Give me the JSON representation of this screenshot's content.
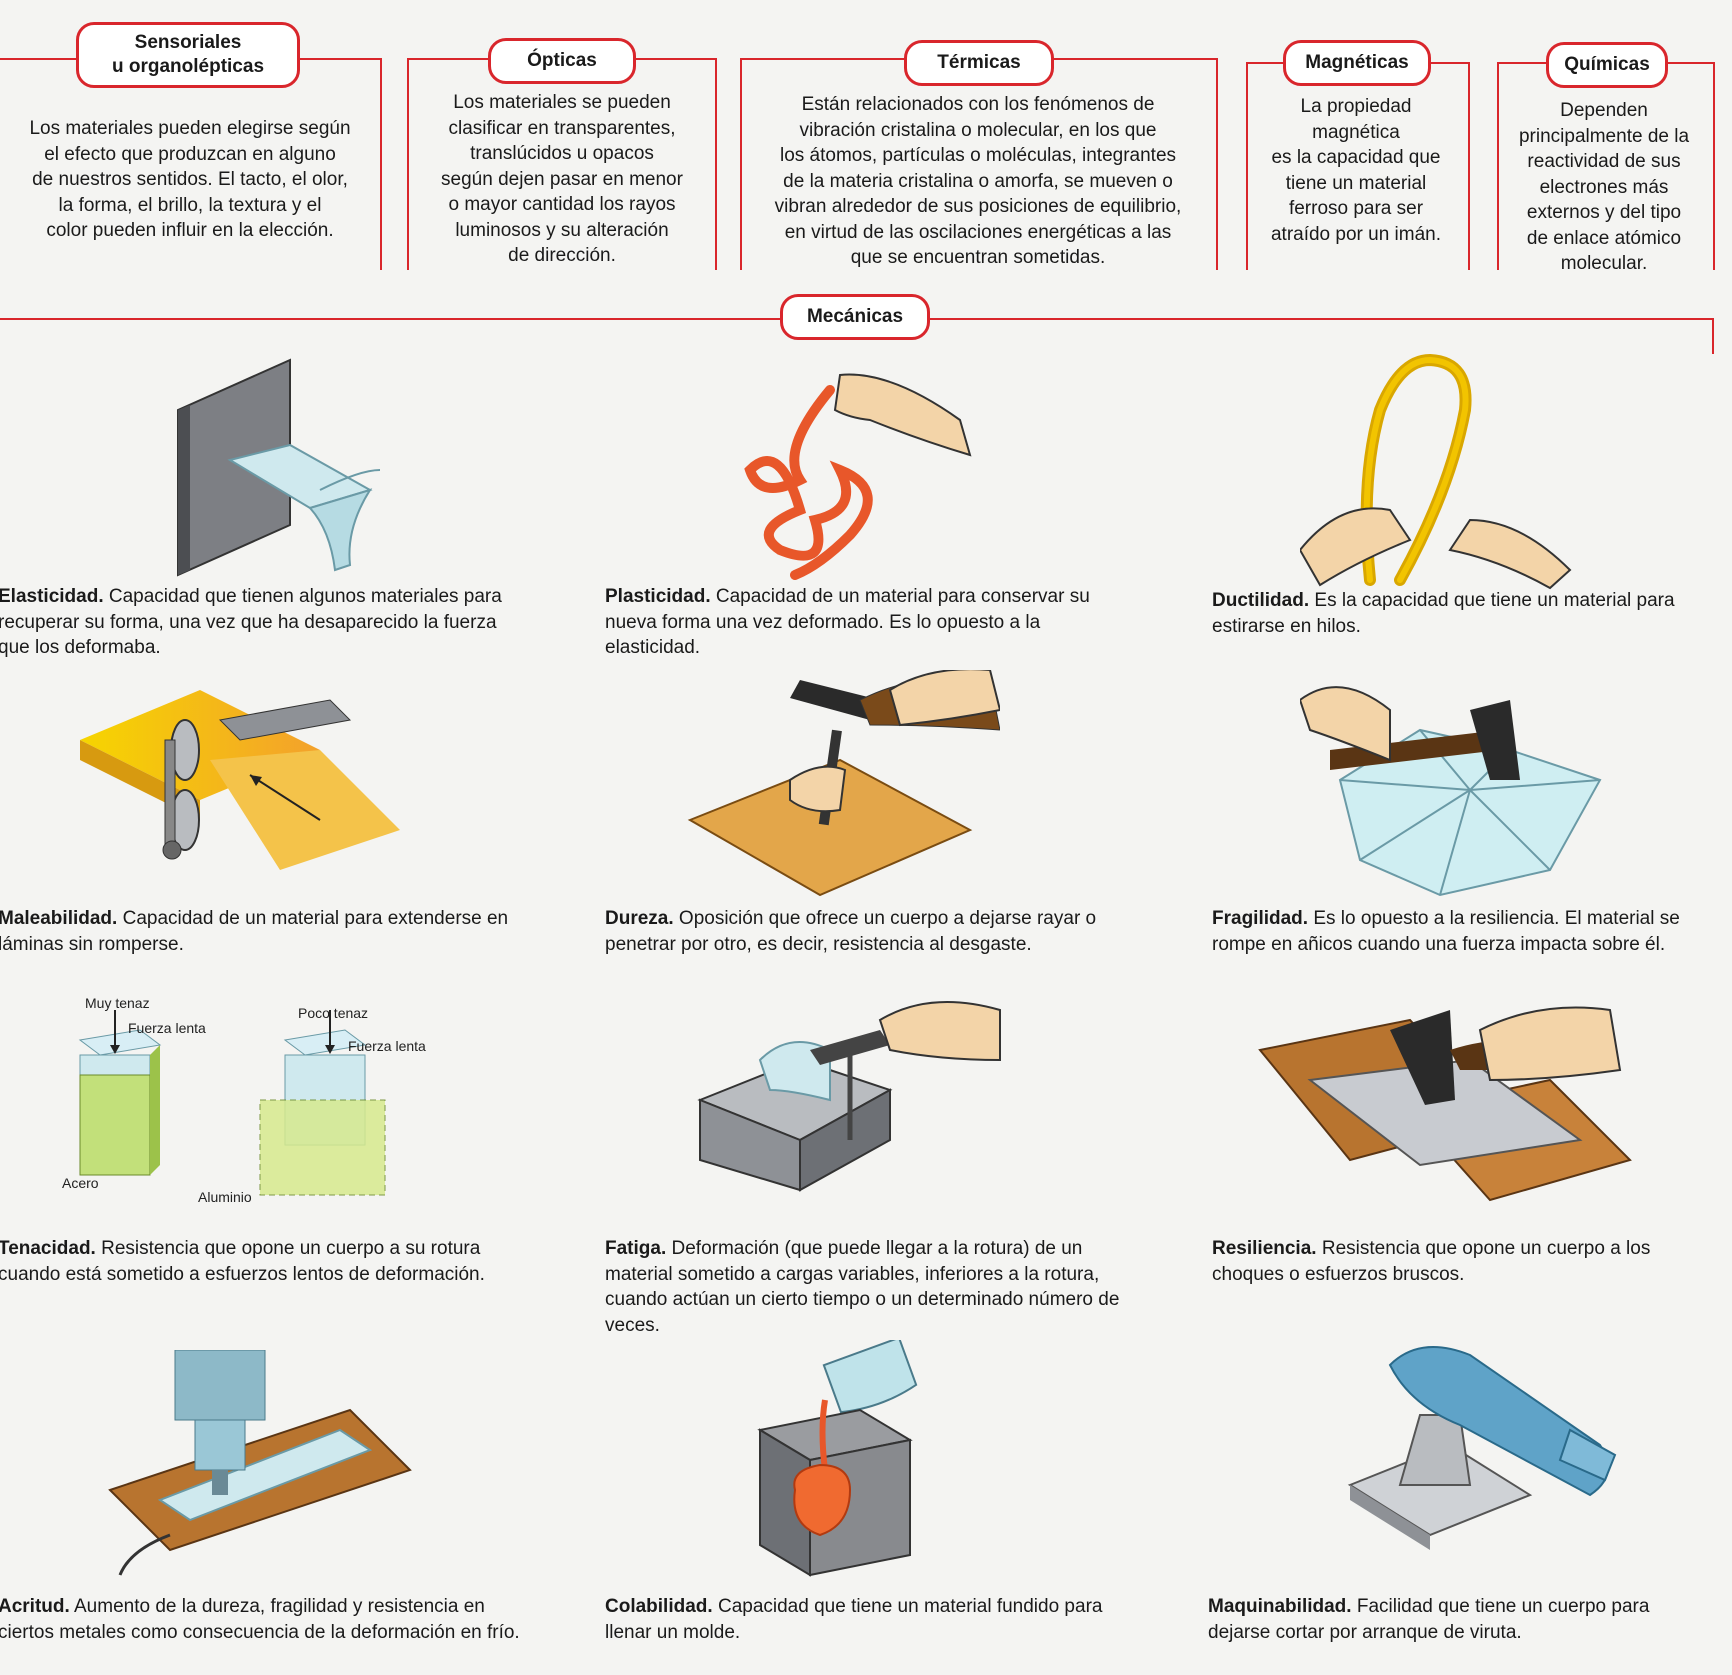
{
  "categories": [
    {
      "title": "Sensoriales\nu organolépticas",
      "text": "Los materiales pueden elegirse según\nel efecto que produzcan en alguno\nde nuestros sentidos. El tacto, el olor,\nla forma, el brillo, la textura y el\ncolor pueden influir en la elección."
    },
    {
      "title": "Ópticas",
      "text": "Los materiales se pueden\nclasificar en transparentes,\ntranslúcidos u opacos\nsegún dejen pasar en menor\no mayor cantidad los rayos\nluminosos y su alteración\nde dirección."
    },
    {
      "title": "Térmicas",
      "text": "Están relacionados con los fenómenos de\nvibración cristalina o molecular, en los que\nlos átomos, partículas o moléculas, integrantes\nde la materia cristalina o amorfa, se mueven o\nvibran alrededor de sus posiciones de equilibrio,\nen virtud de las oscilaciones energéticas a las\nque se encuentran sometidas."
    },
    {
      "title": "Magnéticas",
      "text": "La propiedad\nmagnética\nes la capacidad que\ntiene un material\nferroso para ser\natraído por un imán."
    },
    {
      "title": "Químicas",
      "text": "Dependen\nprincipalmente de la\nreactividad de sus\nelectrones más\nexternos y del tipo\nde enlace atómico\nmolecular."
    }
  ],
  "mechanical": {
    "title": "Mecánicas",
    "properties": [
      {
        "name": "Elasticidad.",
        "text": " Capacidad que tienen algunos materiales para recuperar su forma, una vez que ha desaparecido la fuerza que los deformaba."
      },
      {
        "name": "Plasticidad.",
        "text": " Capacidad de un material para conservar su nueva forma una vez deformado. Es lo opuesto a la elasticidad."
      },
      {
        "name": "Ductilidad.",
        "text": " Es la capacidad que tiene un material para estirarse en hilos."
      },
      {
        "name": "Maleabilidad.",
        "text": " Capacidad de un material para extenderse en láminas sin romperse."
      },
      {
        "name": "Dureza.",
        "text": " Oposición que ofrece un cuerpo a dejarse rayar o penetrar por otro, es decir, resistencia al desgaste."
      },
      {
        "name": "Fragilidad.",
        "text": " Es lo opuesto a la resiliencia. El material se rompe en añicos cuando una fuerza impacta sobre él."
      },
      {
        "name": "Tenacidad.",
        "text": " Resistencia que opone un cuerpo a su rotura cuando está sometido a esfuerzos lentos de deformación."
      },
      {
        "name": "Fatiga.",
        "text": " Deformación (que puede llegar a la rotura) de un material sometido a cargas variables, inferiores a la rotura, cuando actúan un cierto tiempo o un determinado número de veces."
      },
      {
        "name": "Resiliencia.",
        "text": " Resistencia que opone un cuerpo a los choques o esfuerzos bruscos."
      },
      {
        "name": "Acritud.",
        "text": " Aumento de la dureza, fragilidad y resistencia en ciertos metales como consecuencia de la deformación en frío."
      },
      {
        "name": "Colabilidad.",
        "text": " Capacidad que tiene un material fundido para llenar un molde."
      },
      {
        "name": "Maquinabilidad.",
        "text": " Facilidad que tiene un cuerpo para dejarse cortar por arranque de viruta."
      }
    ]
  },
  "tenacity_diagram": {
    "muy_tenaz": "Muy tenaz",
    "poco_tenaz": "Poco tenaz",
    "fuerza_lenta": "Fuerza lenta",
    "acero": "Acero",
    "aluminio": "Aluminio"
  },
  "colors": {
    "frame": "#d9262c",
    "yellow": "#f2c400",
    "orange": "#e8572a",
    "wood": "#b8742f",
    "glass": "#bfe3ea"
  }
}
